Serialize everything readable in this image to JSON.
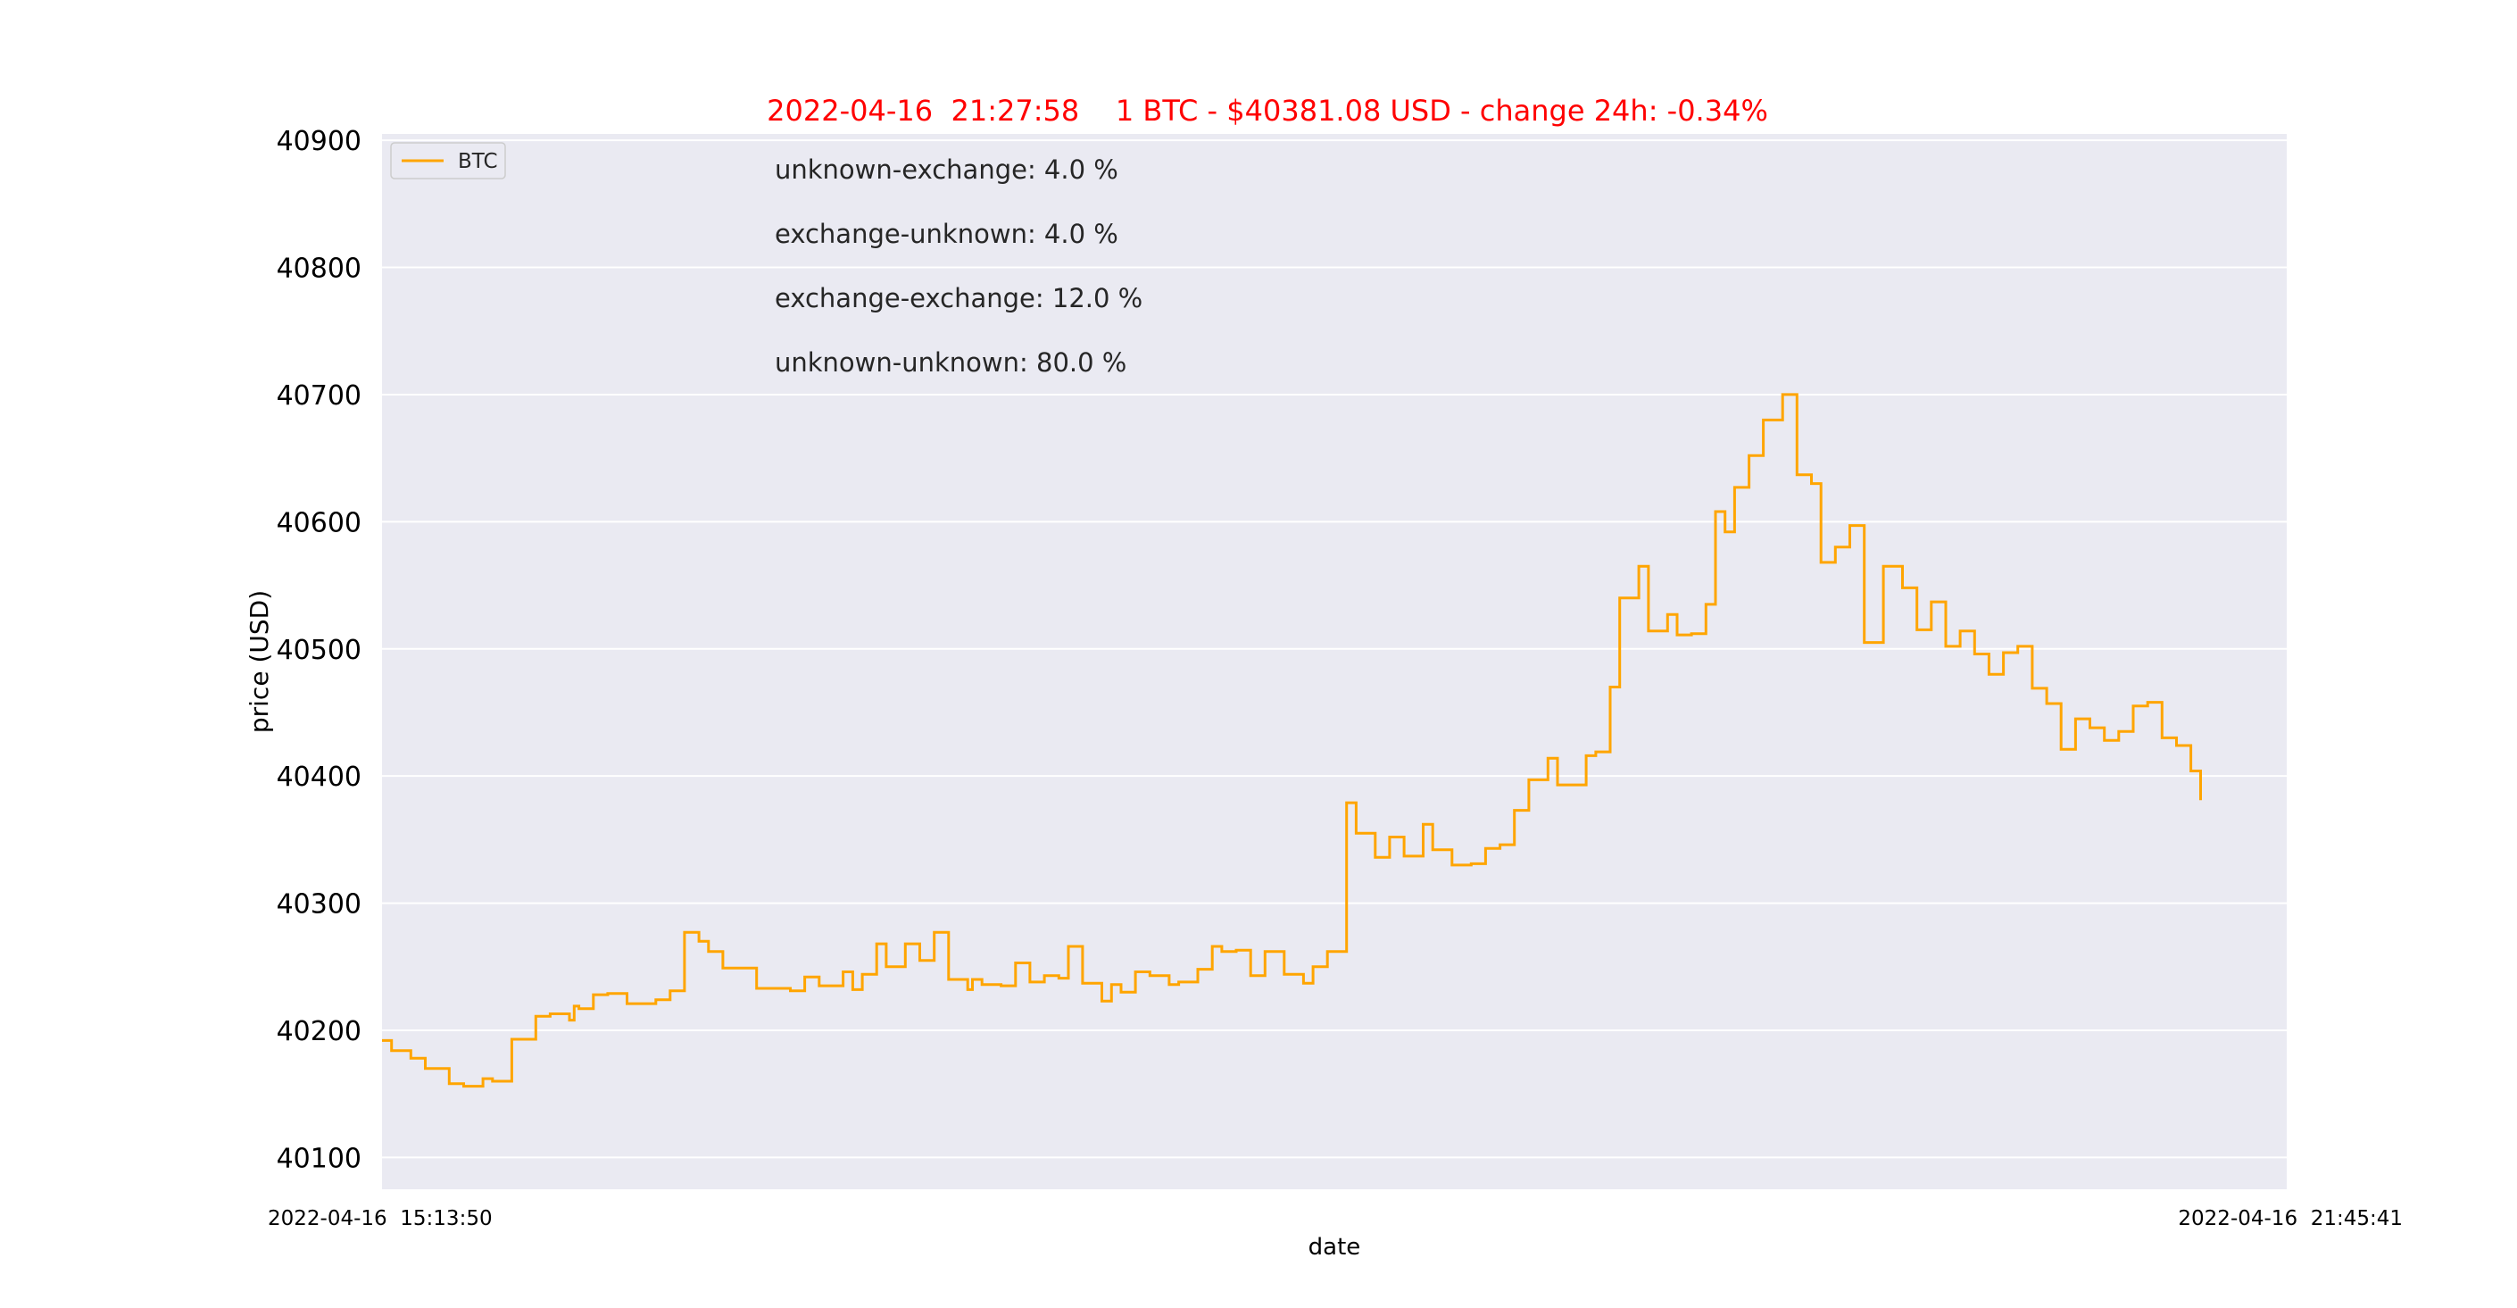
{
  "chart_data": {
    "type": "line",
    "title": "2022-04-16  21:27:58    1 BTC - $40381.08 USD - change 24h: -0.34%",
    "xlabel": "date",
    "ylabel": "price (USD)",
    "x_start_label": "2022-04-16  15:13:50",
    "x_end_label": "2022-04-16  21:45:41",
    "ylim": [
      40075,
      40905
    ],
    "yticks": [
      40100,
      40200,
      40300,
      40400,
      40500,
      40600,
      40700,
      40800,
      40900
    ],
    "grid": true,
    "legend_position": "top-left",
    "annotations": [
      "unknown-exchange: 4.0 %",
      "exchange-unknown: 4.0 %",
      "exchange-exchange: 12.0 %",
      "unknown-unknown: 80.0 %"
    ],
    "series": [
      {
        "name": "BTC",
        "color": "#FFA500",
        "step": true,
        "x": [
          "15:13:50",
          "15:15:48",
          "15:19:46",
          "15:22:44",
          "15:27:40",
          "15:30:38",
          "15:34:36",
          "15:36:34",
          "15:40:32",
          "15:45:28",
          "15:48:26",
          "15:52:24",
          "15:53:22",
          "15:54:20",
          "15:57:19",
          "16:00:16",
          "16:04:14",
          "16:10:10",
          "16:13:06",
          "16:16:04",
          "16:19:02",
          "16:21:00",
          "16:23:58",
          "16:30:54",
          "16:37:50",
          "16:40:48",
          "16:43:46",
          "16:48:42",
          "16:50:40",
          "16:52:38",
          "16:55:36",
          "16:57:34",
          "17:01:30",
          "17:04:28",
          "17:07:26",
          "17:10:24",
          "17:14:20",
          "17:15:18",
          "17:17:16",
          "17:21:12",
          "17:24:10",
          "17:27:08",
          "17:30:06",
          "17:33:04",
          "17:35:02",
          "17:37:58",
          "17:41:56",
          "17:43:54",
          "17:45:52",
          "17:48:50",
          "17:51:48",
          "17:55:46",
          "17:57:44",
          "18:01:40",
          "18:04:38",
          "18:06:36",
          "18:09:34",
          "18:12:32",
          "18:15:30",
          "18:19:26",
          "18:23:24",
          "18:25:22",
          "18:28:20",
          "18:32:16",
          "18:34:14",
          "18:38:10",
          "18:41:08",
          "18:44:06",
          "18:48:02",
          "18:50:00",
          "18:53:58",
          "18:57:54",
          "19:00:52",
          "19:03:50",
          "19:06:48",
          "19:09:46",
          "19:13:42",
          "19:15:40",
          "19:17:38",
          "19:21:34",
          "19:23:32",
          "19:26:30",
          "19:28:28",
          "19:32:24",
          "19:34:22",
          "19:38:18",
          "19:40:16",
          "19:43:14",
          "19:46:12",
          "19:48:10",
          "19:50:08",
          "19:52:06",
          "19:55:04",
          "19:58:00",
          "20:01:58",
          "20:04:56",
          "20:07:54",
          "20:09:52",
          "20:12:50",
          "20:15:48",
          "20:18:46",
          "20:22:42",
          "20:26:38",
          "20:29:36",
          "20:32:34",
          "20:35:32",
          "20:38:30",
          "20:41:28",
          "20:44:26",
          "20:47:24",
          "20:50:22",
          "20:53:20",
          "20:56:18",
          "20:59:16",
          "21:02:14",
          "21:05:12",
          "21:08:10",
          "21:11:08",
          "21:14:06",
          "21:17:04",
          "21:20:02",
          "21:23:00",
          "21:25:58",
          "21:27:58"
        ],
        "values": [
          40192,
          40184,
          40178,
          40170,
          40158,
          40156,
          40162,
          40160,
          40193,
          40211,
          40213,
          40208,
          40219,
          40217,
          40228,
          40229,
          40221,
          40224,
          40231,
          40277,
          40270,
          40262,
          40249,
          40233,
          40231,
          40242,
          40235,
          40246,
          40232,
          40244,
          40268,
          40250,
          40268,
          40255,
          40277,
          40240,
          40232,
          40240,
          40236,
          40235,
          40253,
          40238,
          40243,
          40241,
          40266,
          40237,
          40223,
          40236,
          40230,
          40246,
          40243,
          40236,
          40238,
          40248,
          40266,
          40262,
          40263,
          40243,
          40262,
          40244,
          40237,
          40250,
          40262,
          40379,
          40355,
          40336,
          40352,
          40337,
          40362,
          40342,
          40330,
          40331,
          40343,
          40346,
          40373,
          40397,
          40414,
          40393,
          40393,
          40416,
          40419,
          40470,
          40540,
          40565,
          40514,
          40527,
          40511,
          40512,
          40535,
          40608,
          40592,
          40627,
          40652,
          40680,
          40700,
          40637,
          40630,
          40568,
          40580,
          40597,
          40505,
          40565,
          40548,
          40515,
          40537,
          40502,
          40514,
          40496,
          40480,
          40497,
          40502,
          40469,
          40457,
          40421,
          40445,
          40438,
          40428,
          40435,
          40455,
          40458,
          40430,
          40424,
          40404,
          40381
        ]
      }
    ]
  }
}
